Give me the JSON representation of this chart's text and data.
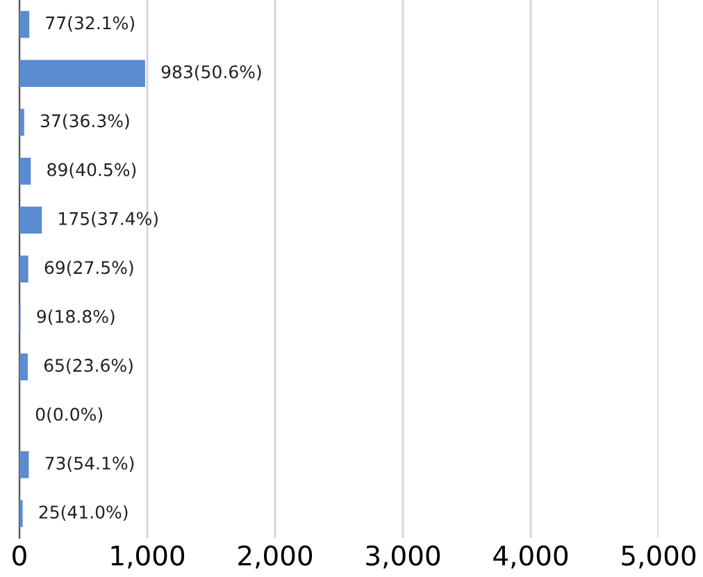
{
  "chart_data": {
    "type": "bar",
    "orientation": "horizontal",
    "categories": [
      null,
      null,
      null,
      null,
      null,
      null,
      null,
      null,
      null,
      null,
      null
    ],
    "values": [
      77,
      983,
      37,
      89,
      175,
      69,
      9,
      65,
      0,
      73,
      25
    ],
    "value_labels": [
      "77(32.1%)",
      "983(50.6%)",
      "37(36.3%)",
      "89(40.5%)",
      "175(37.4%)",
      "69(27.5%)",
      "9(18.8%)",
      "65(23.6%)",
      "0(0.0%)",
      "73(54.1%)",
      "25(41.0%)"
    ],
    "color": "#5b8bd0",
    "xlim": [
      0,
      5000
    ],
    "xticks": [
      0,
      {
        "value": 1000,
        "label": "1,000"
      },
      {
        "value": 2000,
        "label": "2,000"
      },
      {
        "value": 3000,
        "label": "3,000"
      },
      {
        "value": 4000,
        "label": "4,000"
      },
      {
        "value": 5000,
        "label": "5,000"
      }
    ],
    "grid": "x"
  }
}
